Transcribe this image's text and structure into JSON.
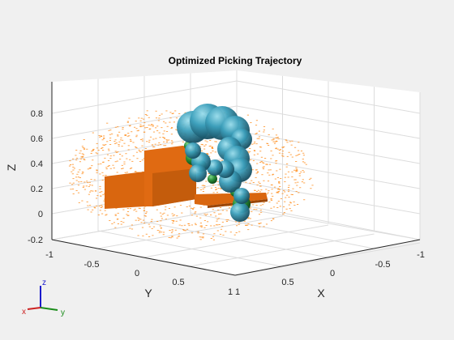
{
  "chart_data": {
    "type": "3d-scene",
    "title": "Optimized Picking Trajectory",
    "axes": {
      "x": {
        "label": "X",
        "ticks": [
          "-1",
          "-0.5",
          "0",
          "0.5",
          "1"
        ]
      },
      "y": {
        "label": "Y",
        "ticks": [
          "-1",
          "-0.5",
          "0",
          "0.5",
          "1"
        ]
      },
      "z": {
        "label": "Z",
        "ticks": [
          "-0.2",
          "0",
          "0.2",
          "0.4",
          "0.6",
          "0.8"
        ]
      }
    },
    "grid": true,
    "elements": [
      {
        "name": "collision-point-cloud",
        "color": "#ff8c1a"
      },
      {
        "name": "workbench-boxes",
        "color": "#d9660f"
      },
      {
        "name": "robot-collision-spheres",
        "color": "#2f8fa8"
      },
      {
        "name": "gripper-green",
        "color": "#1f7a2e"
      }
    ],
    "triad": {
      "z": "z",
      "x": "x",
      "y": "y",
      "colors": {
        "x": "#cc2222",
        "y": "#1a8c1a",
        "z": "#1a1acc"
      }
    }
  },
  "colors": {
    "background": "#f0f0f0",
    "axes_bg": "#ffffff",
    "grid": "#dcdcdc",
    "axis_line": "#262626"
  }
}
